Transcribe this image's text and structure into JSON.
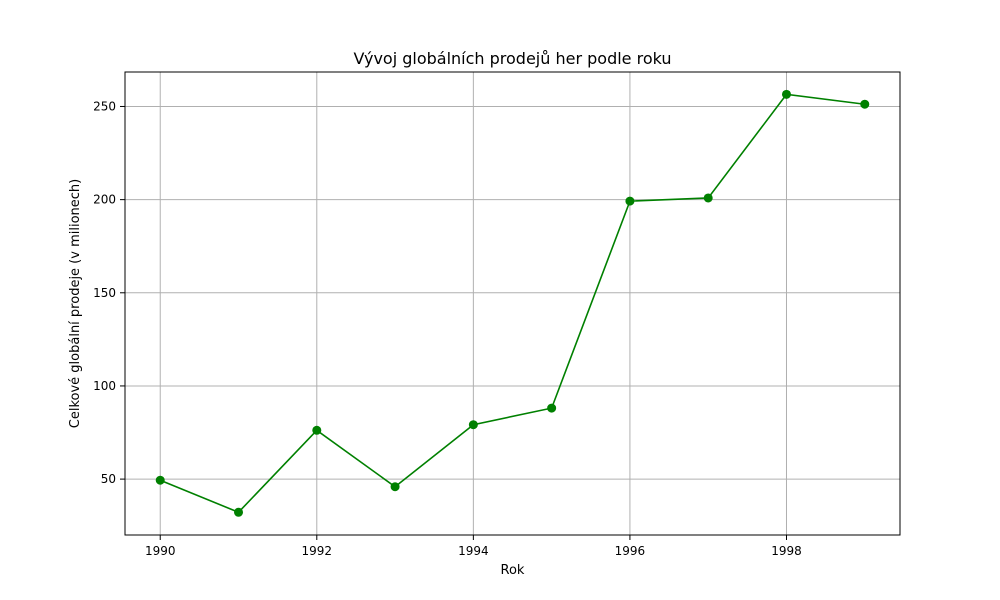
{
  "chart_data": {
    "type": "line",
    "title": "Vývoj globálních prodejů her podle roku",
    "xlabel": "Rok",
    "ylabel": "Celkové globální prodeje (v milionech)",
    "x": [
      1990,
      1991,
      1992,
      1993,
      1994,
      1995,
      1996,
      1997,
      1998,
      1999
    ],
    "series": [
      {
        "values": [
          49.4,
          32.2,
          76.2,
          45.9,
          79.2,
          88.1,
          199.2,
          200.9,
          256.5,
          251.2
        ],
        "color": "#008000",
        "marker": "circle"
      }
    ],
    "xticks": [
      1990,
      1992,
      1994,
      1996,
      1998
    ],
    "yticks": [
      50,
      100,
      150,
      200,
      250
    ],
    "xlim": [
      1989.55,
      1999.45
    ],
    "ylim": [
      20.0,
      268.5
    ],
    "grid": true,
    "legend": false
  }
}
